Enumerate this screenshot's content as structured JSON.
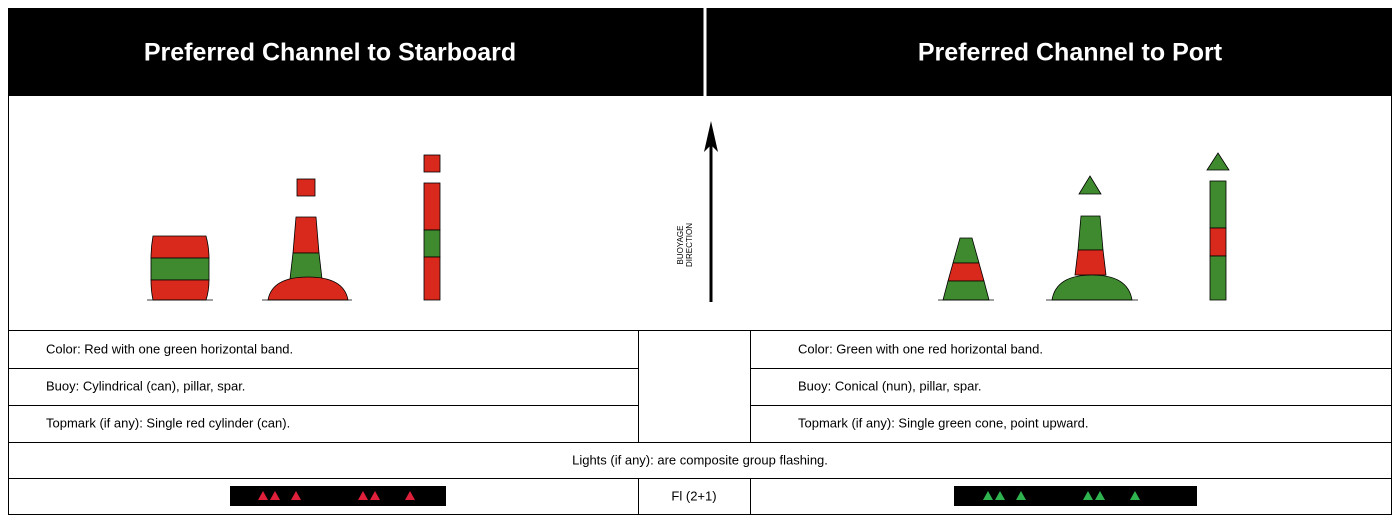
{
  "header": {
    "left_title": "Preferred Channel to Starboard",
    "right_title": "Preferred Channel to Port"
  },
  "diagram": {
    "direction_label": [
      "BUOYAGE",
      "DIRECTION"
    ]
  },
  "table": {
    "left": [
      "Color: Red with one green horizontal band.",
      "Buoy: Cylindrical (can), pillar, spar.",
      "Topmark (if any): Single red cylinder (can)."
    ],
    "right": [
      "Color: Green with one red horizontal band.",
      "Buoy: Conical (nun), pillar, spar.",
      "Topmark (if any): Single green cone, point upward."
    ],
    "lights": "Lights (if any): are composite group flashing.",
    "light_code": "Fl (2+1)"
  }
}
